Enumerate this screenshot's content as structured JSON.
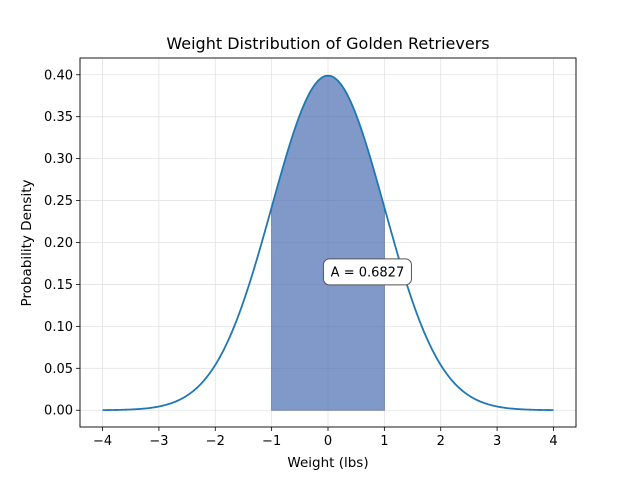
{
  "chart_data": {
    "type": "area",
    "title": "Weight Distribution of Golden Retrievers",
    "xlabel": "Weight (lbs)",
    "ylabel": "Probability Density",
    "xlim": [
      -4.4,
      4.4
    ],
    "ylim": [
      -0.02,
      0.42
    ],
    "x_ticks": [
      -4,
      -3,
      -2,
      -1,
      0,
      1,
      2,
      3,
      4
    ],
    "x_tick_labels": [
      "−4",
      "−3",
      "−2",
      "−1",
      "0",
      "1",
      "2",
      "3",
      "4"
    ],
    "y_ticks": [
      0.0,
      0.05,
      0.1,
      0.15,
      0.2,
      0.25,
      0.3,
      0.35,
      0.4
    ],
    "y_tick_labels": [
      "0.00",
      "0.05",
      "0.10",
      "0.15",
      "0.20",
      "0.25",
      "0.30",
      "0.35",
      "0.40"
    ],
    "grid": true,
    "series": [
      {
        "x": [
          -4.0,
          -3.5,
          -3.0,
          -2.5,
          -2.0,
          -1.5,
          -1.0,
          -0.75,
          -0.5,
          -0.25,
          0.0,
          0.25,
          0.5,
          0.75,
          1.0,
          1.5,
          2.0,
          2.5,
          3.0,
          3.5,
          4.0
        ],
        "y": [
          0.0001,
          0.0009,
          0.0044,
          0.0175,
          0.054,
          0.1295,
          0.242,
          0.3011,
          0.3521,
          0.3867,
          0.3989,
          0.3867,
          0.3521,
          0.3011,
          0.242,
          0.1295,
          0.054,
          0.0175,
          0.0044,
          0.0009,
          0.0001
        ],
        "color": "#1f77b4"
      }
    ],
    "shaded_region": {
      "x_from": -1,
      "x_to": 1,
      "color": "#4c6eb0",
      "opacity": 0.7
    },
    "annotation": {
      "text": "A = 0.6827",
      "x": 0.7,
      "y": 0.165
    }
  }
}
